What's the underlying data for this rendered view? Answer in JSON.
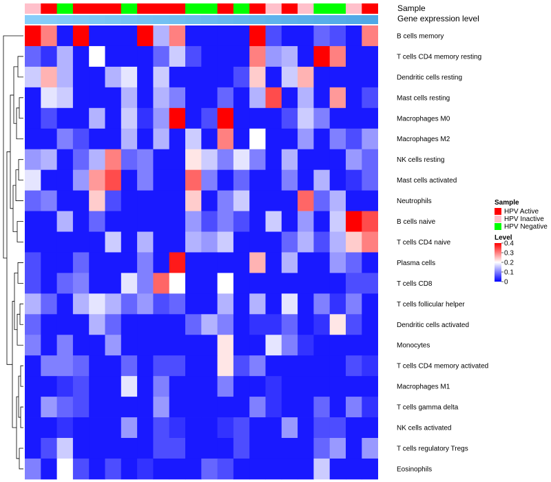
{
  "chart_data": {
    "type": "heatmap",
    "title": "",
    "annotation_labels": {
      "sample": "Sample",
      "gene_expression": "Gene expression level"
    },
    "sample_annotation": [
      "HPV Inactive",
      "HPV Active",
      "HPV Negative",
      "HPV Active",
      "HPV Active",
      "HPV Active",
      "HPV Negative",
      "HPV Active",
      "HPV Active",
      "HPV Active",
      "HPV Negative",
      "HPV Negative",
      "HPV Active",
      "HPV Negative",
      "HPV Active",
      "HPV Inactive",
      "HPV Active",
      "HPV Inactive",
      "HPV Negative",
      "HPV Negative",
      "HPV Inactive",
      "HPV Active"
    ],
    "gene_expression_annotation": [
      0.02,
      0.03,
      0.04,
      0.05,
      0.06,
      0.07,
      0.08,
      0.09,
      0.1,
      0.11,
      0.12,
      0.13,
      0.14,
      0.15,
      0.16,
      0.17,
      0.18,
      0.19,
      0.2,
      0.21,
      0.22,
      0.23
    ],
    "rows": [
      "B cells memory",
      "T cells CD4 memory resting",
      "Dendritic cells resting",
      "Mast cells resting",
      "Macrophages M0",
      "Macrophages M2",
      "NK cells resting",
      "Mast cells activated",
      "Neutrophils",
      "B cells naive",
      "T cells CD4 naive",
      "Plasma cells",
      "T cells CD8",
      "T cells follicular helper",
      "Dendritic cells activated",
      "Monocytes",
      "T cells CD4 memory activated",
      "Macrophages M1",
      "T cells gamma delta",
      "NK cells activated",
      "T cells regulatory  Tregs",
      "Eosinophils"
    ],
    "values": [
      [
        0.4,
        0.3,
        0.02,
        0.4,
        0.02,
        0.02,
        0.02,
        0.4,
        0.14,
        0.3,
        0.02,
        0.02,
        0.02,
        0.02,
        0.4,
        0.06,
        0.02,
        0.02,
        0.08,
        0.06,
        0.02,
        0.3
      ],
      [
        0.08,
        0.04,
        0.14,
        0.02,
        0.2,
        0.02,
        0.02,
        0.02,
        0.08,
        0.16,
        0.06,
        0.02,
        0.02,
        0.02,
        0.3,
        0.12,
        0.14,
        0.02,
        0.4,
        0.3,
        0.02,
        0.02
      ],
      [
        0.16,
        0.26,
        0.14,
        0.02,
        0.02,
        0.14,
        0.18,
        0.02,
        0.16,
        0.02,
        0.02,
        0.02,
        0.02,
        0.06,
        0.24,
        0.02,
        0.16,
        0.26,
        0.02,
        0.02,
        0.02,
        0.02
      ],
      [
        0.02,
        0.18,
        0.16,
        0.02,
        0.02,
        0.02,
        0.14,
        0.02,
        0.14,
        0.1,
        0.02,
        0.02,
        0.08,
        0.02,
        0.14,
        0.34,
        0.02,
        0.14,
        0.02,
        0.28,
        0.02,
        0.06
      ],
      [
        0.02,
        0.06,
        0.02,
        0.02,
        0.14,
        0.02,
        0.16,
        0.04,
        0.12,
        0.4,
        0.02,
        0.06,
        0.4,
        0.02,
        0.02,
        0.02,
        0.06,
        0.16,
        0.1,
        0.02,
        0.02,
        0.02
      ],
      [
        0.02,
        0.02,
        0.1,
        0.06,
        0.02,
        0.02,
        0.14,
        0.02,
        0.14,
        0.02,
        0.16,
        0.02,
        0.3,
        0.02,
        0.2,
        0.02,
        0.02,
        0.12,
        0.02,
        0.1,
        0.06,
        0.12
      ],
      [
        0.12,
        0.14,
        0.02,
        0.08,
        0.14,
        0.3,
        0.08,
        0.1,
        0.02,
        0.02,
        0.22,
        0.16,
        0.1,
        0.18,
        0.1,
        0.02,
        0.14,
        0.02,
        0.02,
        0.02,
        0.12,
        0.08
      ],
      [
        0.18,
        0.02,
        0.02,
        0.12,
        0.28,
        0.34,
        0.02,
        0.1,
        0.02,
        0.02,
        0.32,
        0.1,
        0.02,
        0.08,
        0.02,
        0.02,
        0.1,
        0.02,
        0.14,
        0.02,
        0.04,
        0.08
      ],
      [
        0.08,
        0.1,
        0.02,
        0.02,
        0.24,
        0.06,
        0.02,
        0.02,
        0.02,
        0.02,
        0.24,
        0.02,
        0.1,
        0.16,
        0.02,
        0.02,
        0.02,
        0.32,
        0.08,
        0.14,
        0.02,
        0.02
      ],
      [
        0.02,
        0.02,
        0.14,
        0.02,
        0.08,
        0.02,
        0.02,
        0.02,
        0.02,
        0.02,
        0.12,
        0.06,
        0.1,
        0.06,
        0.02,
        0.16,
        0.02,
        0.12,
        0.02,
        0.16,
        0.4,
        0.34
      ],
      [
        0.02,
        0.02,
        0.02,
        0.02,
        0.02,
        0.16,
        0.02,
        0.14,
        0.02,
        0.02,
        0.14,
        0.12,
        0.16,
        0.02,
        0.02,
        0.02,
        0.08,
        0.14,
        0.06,
        0.14,
        0.24,
        0.3
      ],
      [
        0.06,
        0.02,
        0.02,
        0.08,
        0.02,
        0.02,
        0.02,
        0.1,
        0.02,
        0.38,
        0.02,
        0.02,
        0.02,
        0.02,
        0.26,
        0.02,
        0.14,
        0.02,
        0.02,
        0.12,
        0.08,
        0.02
      ],
      [
        0.06,
        0.02,
        0.08,
        0.1,
        0.02,
        0.02,
        0.18,
        0.1,
        0.32,
        0.2,
        0.02,
        0.02,
        0.2,
        0.02,
        0.02,
        0.02,
        0.02,
        0.02,
        0.02,
        0.02,
        0.06,
        0.06
      ],
      [
        0.14,
        0.08,
        0.02,
        0.14,
        0.18,
        0.14,
        0.08,
        0.12,
        0.06,
        0.08,
        0.02,
        0.02,
        0.14,
        0.02,
        0.14,
        0.02,
        0.18,
        0.02,
        0.1,
        0.04,
        0.1,
        0.02
      ],
      [
        0.08,
        0.02,
        0.02,
        0.02,
        0.14,
        0.08,
        0.02,
        0.02,
        0.02,
        0.02,
        0.08,
        0.14,
        0.1,
        0.02,
        0.04,
        0.04,
        0.08,
        0.02,
        0.04,
        0.22,
        0.06,
        0.02
      ],
      [
        0.1,
        0.02,
        0.1,
        0.02,
        0.02,
        0.12,
        0.02,
        0.02,
        0.02,
        0.02,
        0.02,
        0.02,
        0.22,
        0.02,
        0.02,
        0.18,
        0.1,
        0.04,
        0.02,
        0.02,
        0.02,
        0.02
      ],
      [
        0.02,
        0.1,
        0.1,
        0.08,
        0.02,
        0.02,
        0.08,
        0.02,
        0.06,
        0.06,
        0.02,
        0.02,
        0.22,
        0.06,
        0.1,
        0.02,
        0.02,
        0.02,
        0.02,
        0.02,
        0.06,
        0.04
      ],
      [
        0.02,
        0.02,
        0.04,
        0.06,
        0.02,
        0.02,
        0.18,
        0.02,
        0.1,
        0.02,
        0.02,
        0.02,
        0.1,
        0.02,
        0.02,
        0.04,
        0.02,
        0.02,
        0.02,
        0.02,
        0.02,
        0.02
      ],
      [
        0.02,
        0.12,
        0.08,
        0.06,
        0.02,
        0.02,
        0.02,
        0.02,
        0.12,
        0.02,
        0.02,
        0.02,
        0.02,
        0.02,
        0.1,
        0.04,
        0.02,
        0.02,
        0.08,
        0.02,
        0.1,
        0.04
      ],
      [
        0.02,
        0.02,
        0.04,
        0.02,
        0.02,
        0.02,
        0.12,
        0.02,
        0.06,
        0.04,
        0.02,
        0.02,
        0.04,
        0.06,
        0.02,
        0.02,
        0.12,
        0.02,
        0.06,
        0.06,
        0.02,
        0.02
      ],
      [
        0.02,
        0.06,
        0.16,
        0.02,
        0.02,
        0.02,
        0.02,
        0.02,
        0.06,
        0.06,
        0.02,
        0.02,
        0.02,
        0.06,
        0.02,
        0.02,
        0.02,
        0.02,
        0.08,
        0.12,
        0.02,
        0.12
      ],
      [
        0.1,
        0.02,
        0.2,
        0.06,
        0.02,
        0.06,
        0.02,
        0.04,
        0.02,
        0.02,
        0.02,
        0.08,
        0.06,
        0.02,
        0.02,
        0.02,
        0.02,
        0.02,
        0.16,
        0.02,
        0.02,
        0.02
      ]
    ],
    "color_scale": {
      "low": "#0000FF",
      "mid": "#FFFFFF",
      "high": "#FF0000",
      "domain": [
        0,
        0.4
      ],
      "midpoint": 0.2
    },
    "dendrogram_order": [
      0,
      1,
      2,
      3,
      4,
      5,
      6,
      7,
      8,
      9,
      10,
      11,
      12,
      13,
      14,
      15,
      16,
      17,
      18,
      19,
      20,
      21
    ],
    "legend_sample": {
      "title": "Sample",
      "items": [
        {
          "label": "HPV Active",
          "color": "#FF0000"
        },
        {
          "label": "HPV Inactive",
          "color": "#FFC0CB"
        },
        {
          "label": "HPV Negative",
          "color": "#00FF00"
        }
      ]
    },
    "legend_level": {
      "title": "Level",
      "ticks": [
        "0.4",
        "0.3",
        "0.2",
        "0.1",
        "0"
      ],
      "tick_values": [
        0.4,
        0.3,
        0.2,
        0.1,
        0
      ]
    },
    "annotation_colors": {
      "gene_low": "#87CEFA",
      "gene_high": "#4FA8E6"
    }
  }
}
